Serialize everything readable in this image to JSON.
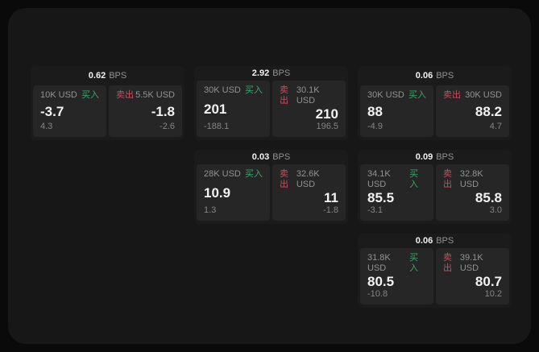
{
  "labels": {
    "bps_unit": "BPS",
    "buy": "买入",
    "sell": "卖出"
  },
  "colors": {
    "page_bg": "#0a0a0a",
    "window_bg": "#171717",
    "card_bg": "#1b1b1b",
    "panel_bg": "#262627",
    "buy_green": "#3fa36c",
    "sell_red": "#c4505f",
    "text_primary": "#f2f2f2",
    "text_secondary": "#929292"
  },
  "cards": [
    {
      "bps": "0.62",
      "col": 1,
      "row": 1,
      "buy": {
        "size": "10K USD",
        "price": "-3.7",
        "change": "4.3"
      },
      "sell": {
        "size": "5.5K USD",
        "price": "-1.8",
        "change": "-2.6"
      }
    },
    {
      "bps": "2.92",
      "col": 2,
      "row": 1,
      "buy": {
        "size": "30K USD",
        "price": "201",
        "change": "-188.1"
      },
      "sell": {
        "size": "30.1K USD",
        "price": "210",
        "change": "196.5"
      }
    },
    {
      "bps": "0.06",
      "col": 3,
      "row": 1,
      "buy": {
        "size": "30K USD",
        "price": "88",
        "change": "-4.9"
      },
      "sell": {
        "size": "30K USD",
        "price": "88.2",
        "change": "4.7"
      }
    },
    {
      "bps": "0.03",
      "col": 2,
      "row": 2,
      "buy": {
        "size": "28K USD",
        "price": "10.9",
        "change": "1.3"
      },
      "sell": {
        "size": "32.6K USD",
        "price": "11",
        "change": "-1.8"
      }
    },
    {
      "bps": "0.09",
      "col": 3,
      "row": 2,
      "buy": {
        "size": "34.1K USD",
        "price": "85.5",
        "change": "-3.1"
      },
      "sell": {
        "size": "32.8K USD",
        "price": "85.8",
        "change": "3.0"
      }
    },
    {
      "bps": "0.06",
      "col": 3,
      "row": 3,
      "buy": {
        "size": "31.8K USD",
        "price": "80.5",
        "change": "-10.8"
      },
      "sell": {
        "size": "39.1K USD",
        "price": "80.7",
        "change": "10.2"
      }
    }
  ]
}
